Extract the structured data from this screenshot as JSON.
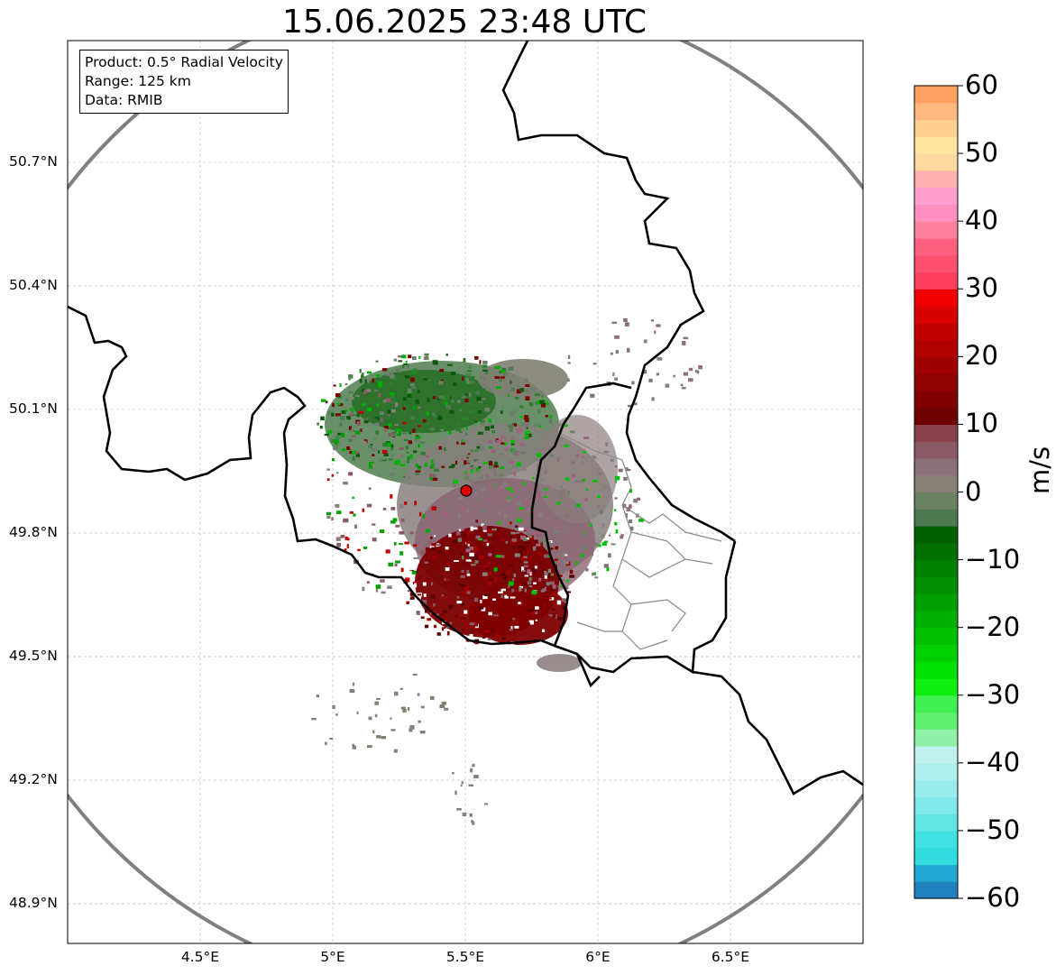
{
  "title": "15.06.2025 23:48 UTC",
  "info": {
    "product": "Product: 0.5° Radial Velocity",
    "range": "Range: 125 km",
    "source": "Data: RMIB"
  },
  "map": {
    "lon_range": [
      4.0,
      7.0
    ],
    "lat_range": [
      48.8,
      51.0
    ],
    "radar_site": {
      "lon": 5.5,
      "lat": 49.92,
      "color": "#e00000"
    },
    "range_ring_km": 125,
    "lat_ticks": [
      {
        "value": 48.9,
        "label": "48.9°N"
      },
      {
        "value": 49.2,
        "label": "49.2°N"
      },
      {
        "value": 49.5,
        "label": "49.5°N"
      },
      {
        "value": 49.8,
        "label": "49.8°N"
      },
      {
        "value": 50.1,
        "label": "50.1°N"
      },
      {
        "value": 50.4,
        "label": "50.4°N"
      },
      {
        "value": 50.7,
        "label": "50.7°N"
      }
    ],
    "lon_ticks": [
      {
        "value": 4.5,
        "label": "4.5°E"
      },
      {
        "value": 5.0,
        "label": "5°E"
      },
      {
        "value": 5.5,
        "label": "5.5°E"
      },
      {
        "value": 6.0,
        "label": "6°E"
      },
      {
        "value": 6.5,
        "label": "6.5°E"
      }
    ]
  },
  "colorbar": {
    "unit": "m/s",
    "min": -60,
    "max": 60,
    "ticks": [
      "60",
      "50",
      "40",
      "30",
      "20",
      "10",
      "0",
      "−10",
      "−20",
      "−30",
      "−40",
      "−50",
      "−60"
    ],
    "colors": [
      "#2080c0",
      "#22a8d0",
      "#30dcdc",
      "#40e0e0",
      "#60e4e4",
      "#80e8e8",
      "#98ecec",
      "#b0eeee",
      "#c0f0f0",
      "#90f0a8",
      "#60f070",
      "#40f050",
      "#10f010",
      "#00e000",
      "#00d000",
      "#00c000",
      "#00b000",
      "#00a000",
      "#009000",
      "#008000",
      "#007000",
      "#006000",
      "#4e7a50",
      "#6a8262",
      "#878078",
      "#8a7078",
      "#8a5a66",
      "#884048",
      "#700000",
      "#800000",
      "#900000",
      "#a00000",
      "#b00000",
      "#c00000",
      "#d80000",
      "#f00000",
      "#ff4060",
      "#ff5070",
      "#ff6080",
      "#ff80a0",
      "#ff90c0",
      "#ffa0d0",
      "#ffb0b0",
      "#ffd8a0",
      "#ffe6a0",
      "#ffd090",
      "#ffb880",
      "#ffa060"
    ]
  }
}
